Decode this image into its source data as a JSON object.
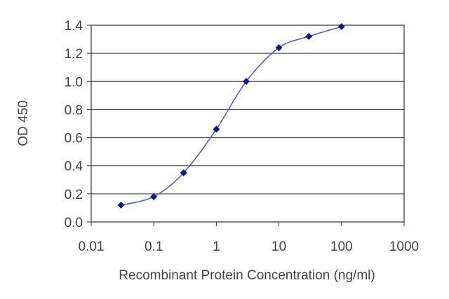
{
  "chart_data": {
    "type": "line",
    "title": "",
    "xlabel": "Recombinant Protein Concentration (ng/ml)",
    "ylabel": "OD 450",
    "x_scale": "log",
    "xlim": [
      0.01,
      1000
    ],
    "ylim": [
      0.0,
      1.4
    ],
    "x_ticks": [
      "0.01",
      "0.1",
      "1",
      "10",
      "100",
      "1000"
    ],
    "x_tick_values": [
      0.01,
      0.1,
      1,
      10,
      100,
      1000
    ],
    "y_ticks": [
      "0.0",
      "0.2",
      "0.4",
      "0.6",
      "0.8",
      "1.0",
      "1.2",
      "1.4"
    ],
    "y_tick_values": [
      0,
      0.2,
      0.4,
      0.6,
      0.8,
      1.0,
      1.2,
      1.4
    ],
    "grid": "horizontal",
    "legend": "none",
    "series": [
      {
        "x": [
          0.03,
          0.1,
          0.3,
          1,
          3,
          10,
          30,
          100
        ],
        "y": [
          0.12,
          0.18,
          0.35,
          0.66,
          1.0,
          1.24,
          1.32,
          1.39
        ],
        "color": "#0a1a8c",
        "line_color": "#5560c8"
      }
    ]
  }
}
